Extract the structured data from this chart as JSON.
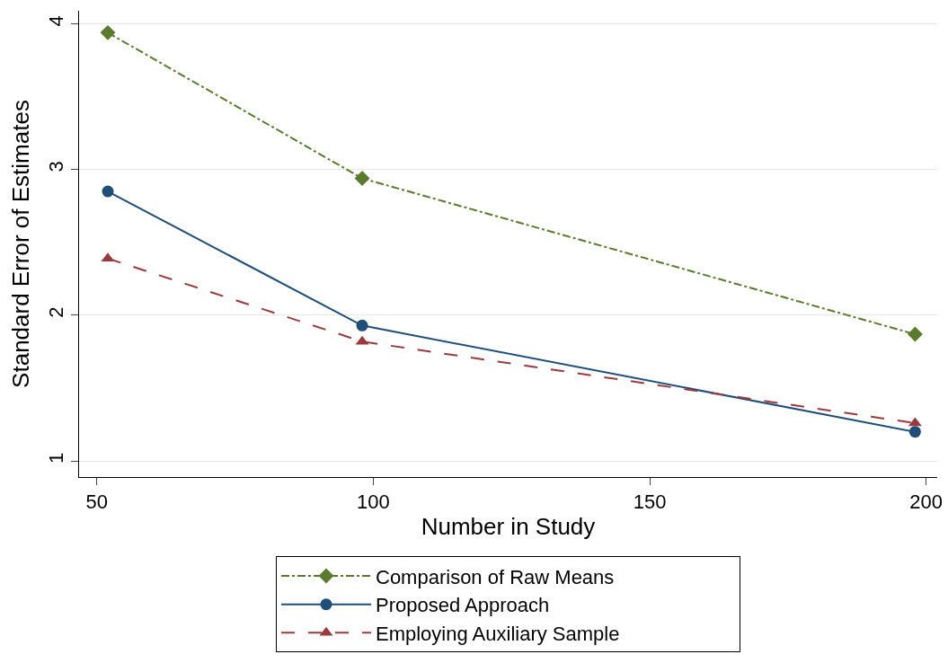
{
  "chart_data": {
    "type": "line",
    "xlabel": "Number in Study",
    "ylabel": "Standard Error of Estimates",
    "x": [
      52,
      98,
      198
    ],
    "series": [
      {
        "name": "Comparison of Raw Means",
        "color": "#5a7a2e",
        "values": [
          3.94,
          2.94,
          1.87
        ],
        "marker": "diamond",
        "line_style": "dashdot"
      },
      {
        "name": "Proposed Approach",
        "color": "#1f4e79",
        "values": [
          2.85,
          1.93,
          1.2
        ],
        "marker": "circle",
        "line_style": "solid"
      },
      {
        "name": "Employing Auxiliary Sample",
        "color": "#9b3a3e",
        "values": [
          2.39,
          1.82,
          1.26
        ],
        "marker": "triangle",
        "line_style": "dashed"
      }
    ],
    "xlim": [
      46.8,
      202
    ],
    "xticks": [
      50,
      100,
      150,
      200
    ],
    "ylim": [
      0.89,
      4.09
    ],
    "yticks": [
      1,
      2,
      3,
      4
    ],
    "grid": "y",
    "legend": "bottom"
  }
}
